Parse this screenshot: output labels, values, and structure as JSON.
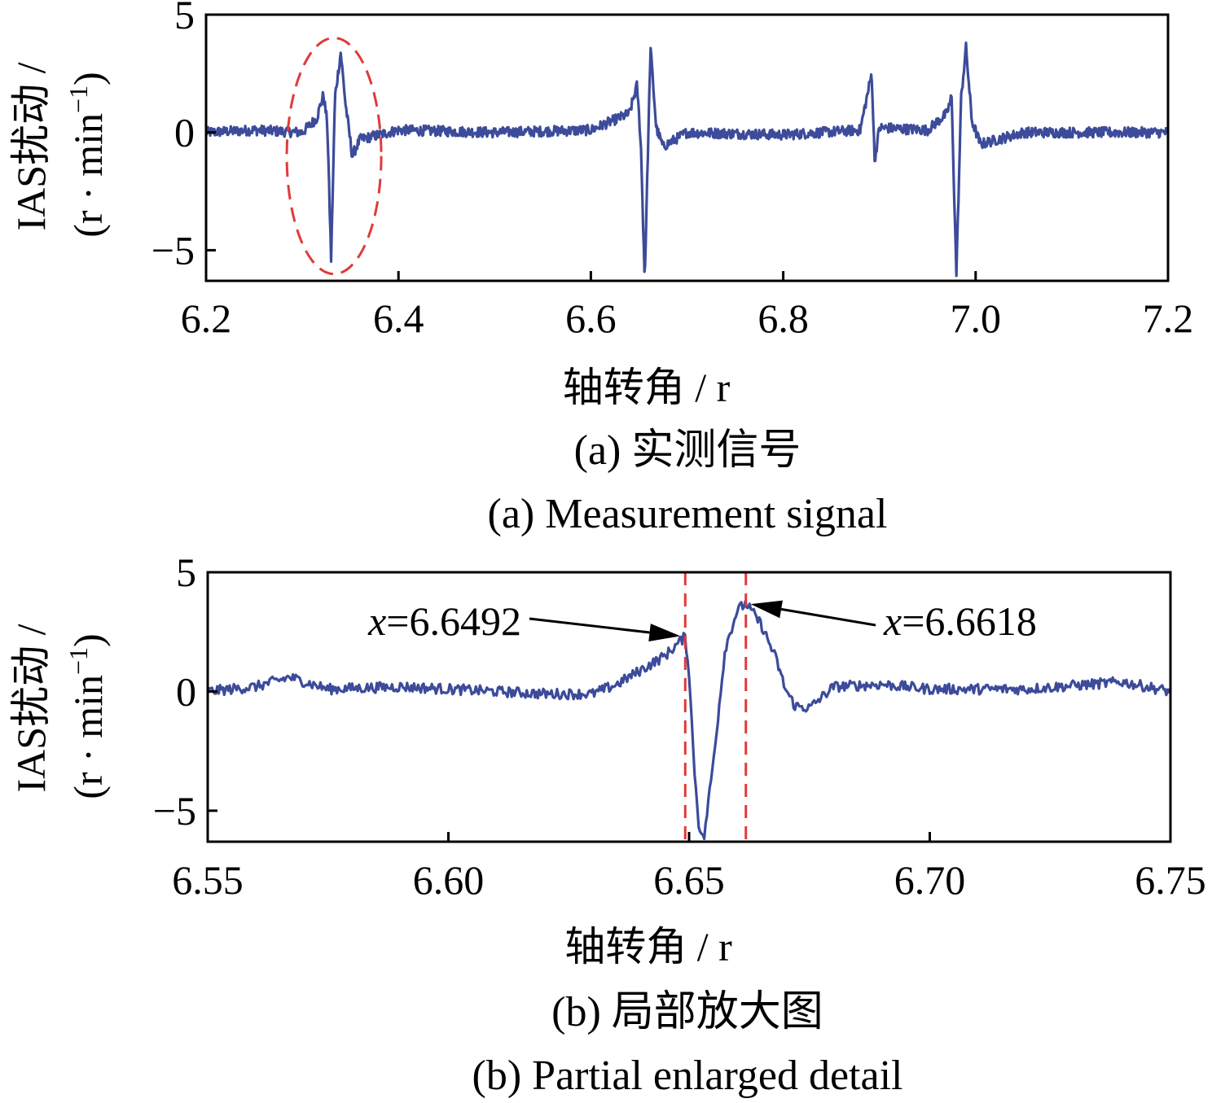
{
  "chart_data": [
    {
      "type": "line",
      "panel": "a",
      "caption_zh": "(a) 实测信号",
      "caption_en": "(a) Measurement signal",
      "xlabel": "轴转角 / r",
      "ylabel_line1": "IAS扰动 /",
      "ylabel_line2": "(r · min",
      "ylabel_sup": "−1",
      "ylabel_close": ")",
      "xlim": [
        6.2,
        7.2
      ],
      "ylim": [
        -6.3,
        5
      ],
      "xticks": [
        "6.2",
        "6.4",
        "6.6",
        "6.8",
        "7.0",
        "7.2"
      ],
      "yticks": [
        "5",
        "0",
        "−5"
      ],
      "grid": false,
      "line_color": "#3c4b9a",
      "highlight_color": "#e03a3a",
      "series": [
        {
          "x": [
            6.2,
            6.25,
            6.3,
            6.315,
            6.322,
            6.326,
            6.33,
            6.334,
            6.34,
            6.345,
            6.352,
            6.36,
            6.4,
            6.5,
            6.6,
            6.64,
            6.648,
            6.652,
            6.656,
            6.662,
            6.668,
            6.675,
            6.7,
            6.8,
            6.88,
            6.892,
            6.895,
            6.9,
            6.95,
            6.97,
            6.975,
            6.98,
            6.985,
            6.99,
            6.996,
            7.005,
            7.05,
            7.15,
            7.2
          ],
          "y": [
            0,
            0.1,
            0,
            0.6,
            1.6,
            0.4,
            -5.4,
            1.5,
            3.4,
            1.2,
            -1.0,
            -0.3,
            0.1,
            0,
            0.1,
            0.8,
            2.0,
            -0.5,
            -6.3,
            3.6,
            0.2,
            -0.6,
            0,
            -0.1,
            0.1,
            2.5,
            -1.2,
            0.2,
            0.1,
            0.8,
            1.5,
            -6.0,
            1.5,
            3.6,
            0.5,
            -0.5,
            0,
            0,
            0
          ]
        }
      ],
      "highlight_ellipse_center": [
        6.333,
        -1.0
      ]
    },
    {
      "type": "line",
      "panel": "b",
      "caption_zh": "(b) 局部放大图",
      "caption_en": "(b) Partial enlarged detail",
      "xlabel": "轴转角 / r",
      "ylabel_line1": "IAS扰动 /",
      "ylabel_line2": "(r · min",
      "ylabel_sup": "−1",
      "ylabel_close": ")",
      "xlim": [
        6.55,
        6.75
      ],
      "ylim": [
        -6.3,
        5
      ],
      "xticks": [
        "6.55",
        "6.60",
        "6.65",
        "6.70",
        "6.75"
      ],
      "yticks": [
        "5",
        "0",
        "−5"
      ],
      "grid": false,
      "line_color": "#3c4b9a",
      "highlight_color": "#e03a3a",
      "vlines": [
        6.6492,
        6.6618
      ],
      "annotations": [
        {
          "var": "x",
          "text": "=6.6492",
          "point": [
            6.6492,
            2.3
          ]
        },
        {
          "var": "x",
          "text": "=6.6618",
          "point": [
            6.6618,
            3.7
          ]
        }
      ],
      "series": [
        {
          "x": [
            6.55,
            6.56,
            6.567,
            6.575,
            6.59,
            6.6,
            6.61,
            6.62,
            6.63,
            6.635,
            6.64,
            6.645,
            6.6492,
            6.65,
            6.651,
            6.652,
            6.653,
            6.655,
            6.6575,
            6.66,
            6.6618,
            6.665,
            6.668,
            6.67,
            6.672,
            6.675,
            6.68,
            6.69,
            6.7,
            6.72,
            6.74,
            6.75
          ],
          "y": [
            0,
            0.2,
            0.6,
            0.1,
            0.2,
            0.1,
            0,
            -0.1,
            -0.1,
            0.3,
            0.9,
            1.5,
            2.3,
            0.8,
            -3.0,
            -5.5,
            -6.3,
            -3.0,
            1.8,
            3.4,
            3.7,
            2.8,
            1.4,
            0.1,
            -0.6,
            -0.7,
            0.2,
            0.3,
            0.1,
            0.1,
            0.4,
            0
          ]
        }
      ]
    }
  ]
}
